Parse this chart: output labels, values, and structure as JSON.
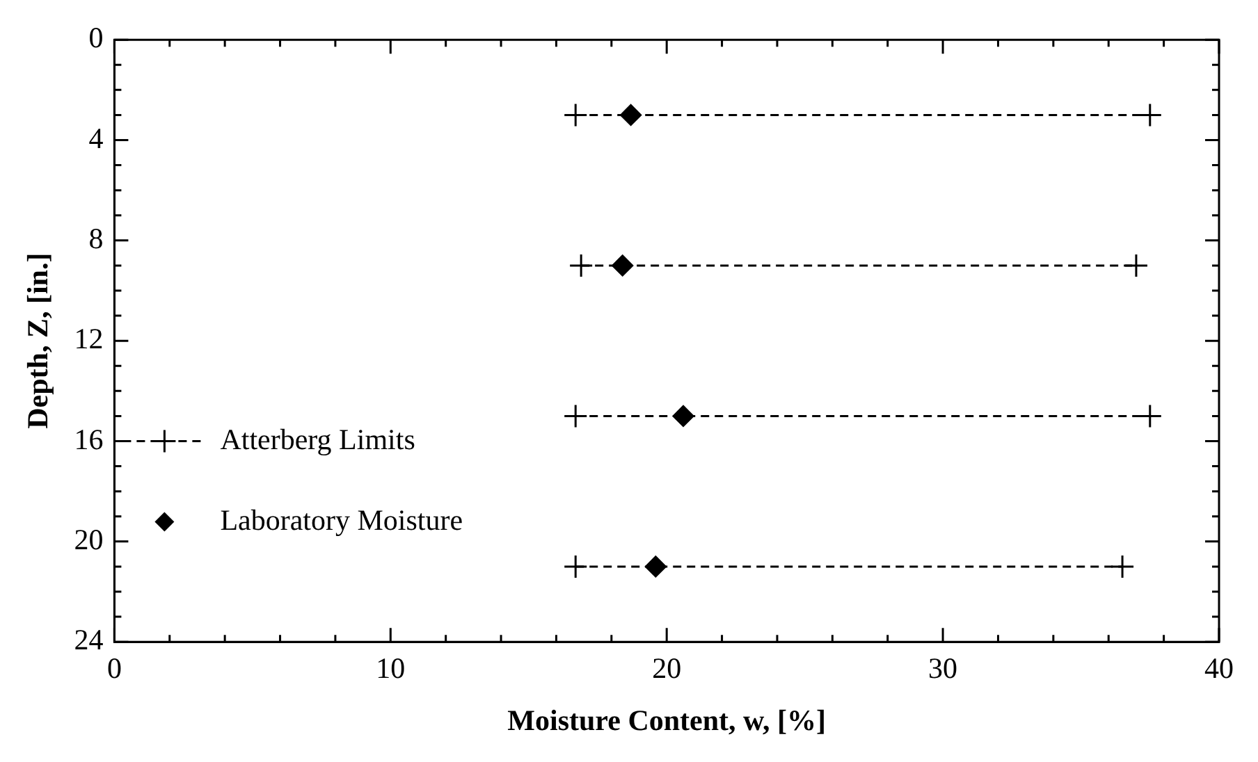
{
  "chart_data": {
    "type": "scatter",
    "xlabel": "Moisture Content, w, [%]",
    "ylabel": "Depth, Z, [in.]",
    "xlim": [
      0,
      40
    ],
    "xticks": [
      0,
      {
        "value": 2,
        "label": null
      },
      {
        "value": 4,
        "label": null
      },
      {
        "value": 6,
        "label": null
      },
      {
        "value": 8,
        "label": null
      },
      10,
      {
        "value": 12,
        "label": null
      },
      {
        "value": 14,
        "label": null
      },
      {
        "value": 16,
        "label": null
      },
      {
        "value": 18,
        "label": null
      },
      20,
      {
        "value": 22,
        "label": null
      },
      {
        "value": 24,
        "label": null
      },
      {
        "value": 26,
        "label": null
      },
      {
        "value": 28,
        "label": null
      },
      30,
      {
        "value": 32,
        "label": null
      },
      {
        "value": 34,
        "label": null
      },
      {
        "value": 36,
        "label": null
      },
      {
        "value": 38,
        "label": null
      },
      40
    ],
    "ylim": [
      24,
      0
    ],
    "yticks": [
      0,
      {
        "value": 1,
        "label": null
      },
      {
        "value": 2,
        "label": null
      },
      {
        "value": 3,
        "label": null
      },
      4,
      {
        "value": 5,
        "label": null
      },
      {
        "value": 6,
        "label": null
      },
      {
        "value": 7,
        "label": null
      },
      8,
      {
        "value": 9,
        "label": null
      },
      {
        "value": 10,
        "label": null
      },
      {
        "value": 11,
        "label": null
      },
      12,
      {
        "value": 13,
        "label": null
      },
      {
        "value": 14,
        "label": null
      },
      {
        "value": 15,
        "label": null
      },
      16,
      {
        "value": 17,
        "label": null
      },
      {
        "value": 18,
        "label": null
      },
      {
        "value": 19,
        "label": null
      },
      20,
      {
        "value": 21,
        "label": null
      },
      {
        "value": 22,
        "label": null
      },
      {
        "value": 23,
        "label": null
      },
      24
    ],
    "grid": false,
    "legend": "left",
    "series": [
      {
        "name": "Atterberg Limits",
        "type": "line",
        "color": "#000000",
        "marker": "cross",
        "line_style": "dashed",
        "x": [
          16.7,
          37.5
        ],
        "values": [
          3,
          3
        ]
      },
      {
        "type": "line",
        "color": "#000000",
        "marker": "cross",
        "line_style": "dashed",
        "x": [
          16.9,
          37.0
        ],
        "values": [
          9,
          9
        ]
      },
      {
        "type": "line",
        "color": "#000000",
        "marker": "cross",
        "line_style": "dashed",
        "x": [
          16.7,
          37.5
        ],
        "values": [
          15,
          15
        ]
      },
      {
        "type": "line",
        "color": "#000000",
        "marker": "cross",
        "line_style": "dashed",
        "x": [
          16.7,
          36.5
        ],
        "values": [
          21,
          21
        ]
      },
      {
        "name": "Laboratory Moisture",
        "type": "scatter",
        "color": "#000000",
        "marker": "diamond",
        "x": [
          18.7,
          18.4,
          20.6,
          19.6
        ],
        "values": [
          3,
          9,
          15,
          21
        ]
      }
    ]
  }
}
